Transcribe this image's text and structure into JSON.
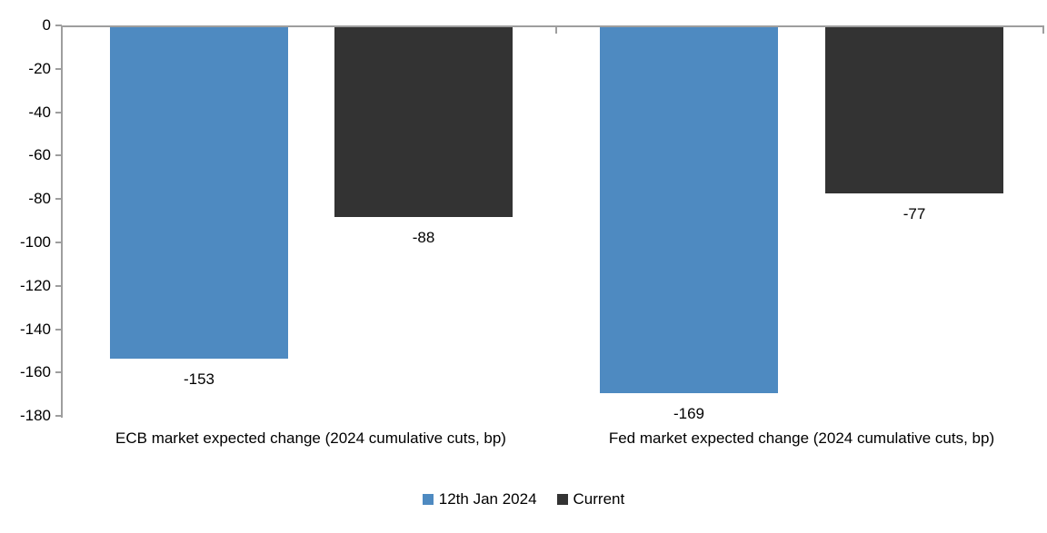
{
  "chart_data": {
    "type": "bar",
    "title": "",
    "categories": [
      "ECB market expected change (2024 cumulative cuts, bp)",
      "Fed market expected change (2024 cumulative cuts, bp)"
    ],
    "series": [
      {
        "name": "12th Jan 2024",
        "color": "#4E8AC1",
        "values": [
          -153,
          -169
        ]
      },
      {
        "name": "Current",
        "color": "#333333",
        "values": [
          -88,
          -77
        ]
      }
    ],
    "ylim": [
      -180,
      0
    ],
    "ytick_step": 20,
    "ytick_labels": [
      "0",
      "-20",
      "-40",
      "-60",
      "-80",
      "-100",
      "-120",
      "-140",
      "-160",
      "-180"
    ],
    "data_labels_shown": true,
    "grid": false,
    "legend_position": "bottom",
    "axis_color": "#9E9E9E",
    "text_color": "#000000",
    "background_color": "#FFFFFF"
  }
}
